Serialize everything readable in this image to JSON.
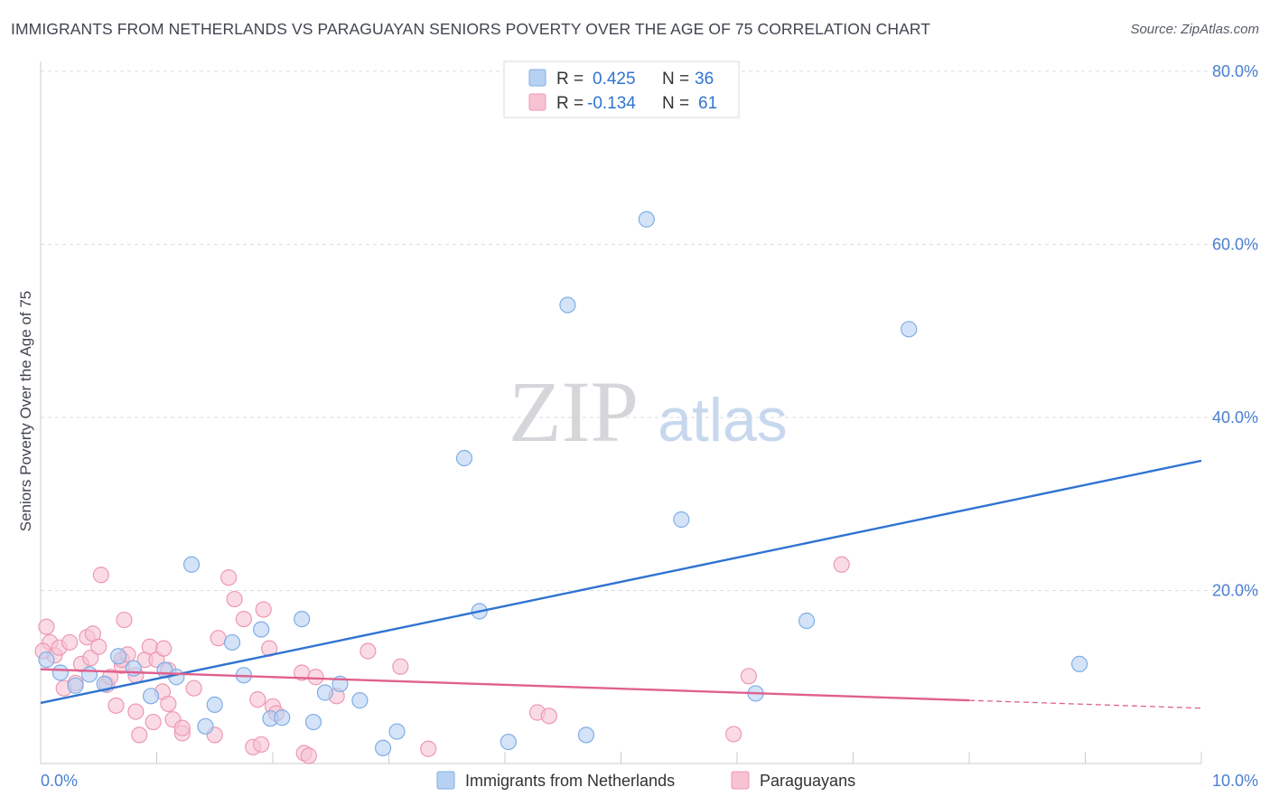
{
  "title": "IMMIGRANTS FROM NETHERLANDS VS PARAGUAYAN SENIORS POVERTY OVER THE AGE OF 75 CORRELATION CHART",
  "source": "Source: ZipAtlas.com",
  "watermark": {
    "zip": "ZIP",
    "atlas": "atlas"
  },
  "colors": {
    "blue_fill": "#b7d1f2",
    "blue_stroke": "#7faee6",
    "blue_line": "#2f74d0",
    "pink_fill": "#f7c3d3",
    "pink_stroke": "#ee98b3",
    "pink_line": "#e0608e",
    "axis_text": "#4a7fd0",
    "grid": "#d9dde3"
  },
  "chart_data": {
    "type": "scatter",
    "xlabel": "",
    "ylabel": "Seniors Poverty Over the Age of 75",
    "xlim": [
      0,
      10
    ],
    "ylim": [
      0,
      80
    ],
    "x_tick_labels": [
      "0.0%",
      "10.0%"
    ],
    "y_tick_values": [
      20,
      40,
      60,
      80
    ],
    "y_tick_labels": [
      "20.0%",
      "40.0%",
      "60.0%",
      "80.0%"
    ],
    "legend_position": "top-center",
    "legend": [
      {
        "r_label": "R =",
        "r_value": "0.425",
        "n_label": "N =",
        "n_value": "36"
      },
      {
        "r_label": "R =",
        "r_value": "-0.134",
        "n_label": "N =",
        "n_value": "61"
      }
    ],
    "bottom_legend": [
      "Immigrants from Netherlands",
      "Paraguayans"
    ],
    "series": [
      {
        "name": "Immigrants from Netherlands",
        "trend": {
          "x0": 0,
          "y0": 7.0,
          "x1": 10,
          "y1": 35.0
        },
        "points": [
          [
            0.05,
            12.0
          ],
          [
            0.17,
            10.5
          ],
          [
            0.3,
            9.0
          ],
          [
            0.42,
            10.3
          ],
          [
            0.55,
            9.2
          ],
          [
            0.67,
            12.4
          ],
          [
            0.8,
            11.0
          ],
          [
            0.95,
            7.8
          ],
          [
            1.07,
            10.8
          ],
          [
            1.17,
            10.0
          ],
          [
            1.3,
            23.0
          ],
          [
            1.42,
            4.3
          ],
          [
            1.5,
            6.8
          ],
          [
            1.65,
            14.0
          ],
          [
            1.75,
            10.2
          ],
          [
            1.9,
            15.5
          ],
          [
            1.98,
            5.2
          ],
          [
            2.08,
            5.3
          ],
          [
            2.25,
            16.7
          ],
          [
            2.35,
            4.8
          ],
          [
            2.45,
            8.2
          ],
          [
            2.58,
            9.2
          ],
          [
            2.75,
            7.3
          ],
          [
            2.95,
            1.8
          ],
          [
            3.07,
            3.7
          ],
          [
            3.65,
            35.3
          ],
          [
            3.78,
            17.6
          ],
          [
            4.03,
            2.5
          ],
          [
            4.54,
            53.0
          ],
          [
            4.7,
            3.3
          ],
          [
            5.22,
            62.9
          ],
          [
            5.52,
            28.2
          ],
          [
            6.16,
            8.1
          ],
          [
            6.6,
            16.5
          ],
          [
            7.48,
            50.2
          ],
          [
            8.95,
            11.5
          ]
        ]
      },
      {
        "name": "Paraguayans",
        "trend": {
          "x0": 0,
          "y0": 10.9,
          "x1": 8.0,
          "y1": 7.3
        },
        "trend_dash": {
          "x0": 8.0,
          "y0": 7.3,
          "x1": 10,
          "y1": 6.4
        },
        "points": [
          [
            0.05,
            15.8
          ],
          [
            0.08,
            14.0
          ],
          [
            0.12,
            12.5
          ],
          [
            0.16,
            13.4
          ],
          [
            0.2,
            8.7
          ],
          [
            0.25,
            14.0
          ],
          [
            0.3,
            9.3
          ],
          [
            0.35,
            11.5
          ],
          [
            0.4,
            14.6
          ],
          [
            0.43,
            12.2
          ],
          [
            0.45,
            15.0
          ],
          [
            0.5,
            13.5
          ],
          [
            0.52,
            21.8
          ],
          [
            0.57,
            9.1
          ],
          [
            0.6,
            10.0
          ],
          [
            0.65,
            6.7
          ],
          [
            0.7,
            11.3
          ],
          [
            0.7,
            12.0
          ],
          [
            0.72,
            16.6
          ],
          [
            0.75,
            12.6
          ],
          [
            0.82,
            10.2
          ],
          [
            0.82,
            6.0
          ],
          [
            0.85,
            3.3
          ],
          [
            0.9,
            12.0
          ],
          [
            0.94,
            13.5
          ],
          [
            0.97,
            4.8
          ],
          [
            1.0,
            12.0
          ],
          [
            1.05,
            8.3
          ],
          [
            1.06,
            13.3
          ],
          [
            1.1,
            10.8
          ],
          [
            1.1,
            6.9
          ],
          [
            1.14,
            5.1
          ],
          [
            1.22,
            3.5
          ],
          [
            1.22,
            4.1
          ],
          [
            1.32,
            8.7
          ],
          [
            1.5,
            3.3
          ],
          [
            1.53,
            14.5
          ],
          [
            1.62,
            21.5
          ],
          [
            1.67,
            19.0
          ],
          [
            1.75,
            16.7
          ],
          [
            1.83,
            1.9
          ],
          [
            1.87,
            7.4
          ],
          [
            1.9,
            2.2
          ],
          [
            1.92,
            17.8
          ],
          [
            1.97,
            13.3
          ],
          [
            2.0,
            6.6
          ],
          [
            2.03,
            5.8
          ],
          [
            2.25,
            10.5
          ],
          [
            2.27,
            1.2
          ],
          [
            2.31,
            0.9
          ],
          [
            2.37,
            10.0
          ],
          [
            2.55,
            7.8
          ],
          [
            2.82,
            13.0
          ],
          [
            3.1,
            11.2
          ],
          [
            3.34,
            1.7
          ],
          [
            4.28,
            5.9
          ],
          [
            4.38,
            5.5
          ],
          [
            5.97,
            3.4
          ],
          [
            6.1,
            10.1
          ],
          [
            6.9,
            23.0
          ],
          [
            0.02,
            13.0
          ]
        ]
      }
    ]
  }
}
